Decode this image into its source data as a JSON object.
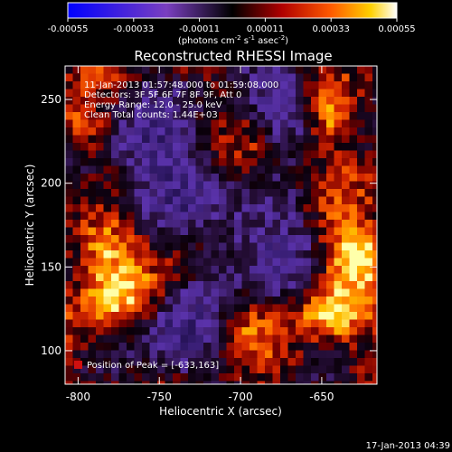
{
  "chart_data": {
    "type": "heatmap",
    "title": "Reconstructed RHESSI Image",
    "xlabel": "Heliocentric X (arcsec)",
    "ylabel": "Heliocentric Y (arcsec)",
    "xlim": [
      -808,
      -616
    ],
    "ylim": [
      80,
      270
    ],
    "x_ticks": [
      -800,
      -750,
      -700,
      -650
    ],
    "x_tick_labels": [
      "-800",
      "-750",
      "-700",
      "-650"
    ],
    "y_ticks": [
      100,
      150,
      200,
      250
    ],
    "y_tick_labels": [
      "100",
      "150",
      "200",
      "250"
    ],
    "colorbar": {
      "ticks": [
        -0.00055,
        -0.00033,
        -0.00011,
        0.00011,
        0.00033,
        0.00055
      ],
      "tick_labels": [
        "-0.00055",
        "-0.00033",
        "-0.00011",
        "0.00011",
        "0.00033",
        "0.00055"
      ],
      "range": [
        -0.00055,
        0.00055
      ],
      "unit_label": "(photons cm",
      "unit_exp1": "-2",
      "unit_mid": " s",
      "unit_exp2": "-1",
      "unit_mid2": " asec",
      "unit_exp3": "-2",
      "unit_end": ")"
    },
    "annotations": {
      "time_range": "11-Jan-2013 01:57:48.000 to 01:59:08.000",
      "detectors": "Detectors: 3F 5F 6F 7F 8F 9F, Att 0",
      "energy": "Energy Range: 12.0 - 25.0 keV",
      "method": "Clean     Total counts: 1.44E+03",
      "peak": "Position of Peak = [-633,163]"
    },
    "peak_position": [
      -633,
      163
    ],
    "grid": false
  },
  "footer": {
    "timestamp": "17-Jan-2013 04:39"
  },
  "colors": {
    "background": "#000000",
    "foreground": "#ffffff",
    "colormap": [
      "#0000ff",
      "#4a2cc4",
      "#7a3fc0",
      "#1a0f3a",
      "#5a0000",
      "#d02000",
      "#ff6a00",
      "#ffc000",
      "#ffffa0"
    ]
  }
}
